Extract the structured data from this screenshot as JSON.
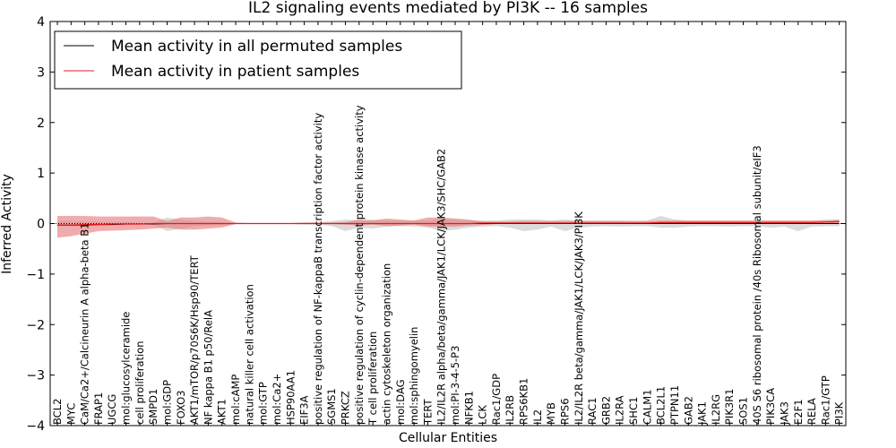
{
  "chart_data": {
    "type": "line",
    "title": "IL2 signaling events mediated by PI3K -- 16 samples",
    "xlabel": "Cellular Entities",
    "ylabel": "Inferred Activity",
    "ylim": [
      -4,
      4
    ],
    "yticks": [
      "−4",
      "−3",
      "−2",
      "−1",
      "0",
      "1",
      "2",
      "3",
      "4"
    ],
    "legend_position": "top-left",
    "grid": false,
    "colors": {
      "permuted": "#000000",
      "patient": "#e8191c",
      "patient_band": "#e88080",
      "permuted_band": "#c8c8c8"
    },
    "categories": [
      "BCL2",
      "MYC",
      "CaM/Ca2+/Calcineurin A alpha-beta B1",
      "FRAP1",
      "UGCG",
      "mol:glucosylceramide",
      "cell proliferation",
      "SMPD1",
      "mol:GDP",
      "FOXO3",
      "AKT1/mTOR/p70S6K/Hsp90/TERT",
      "NF kappa B1 p50/RelA",
      "AKT1",
      "mol:cAMP",
      "natural killer cell activation",
      "mol:GTP",
      "mol:Ca2+",
      "HSP90AA1",
      "EIF3A",
      "positive regulation of NF-kappaB transcription factor activity",
      "SGMS1",
      "PRKCZ",
      "positive regulation of cyclin-dependent protein kinase activity",
      "T cell proliferation",
      "actin cytoskeleton organization",
      "mol:DAG",
      "mol:sphingomyelin",
      "TERT",
      "IL2/IL2R alpha/beta/gamma/JAK1/LCK/JAK3/SHC/GAB2",
      "mol:PI-3-4-5-P3",
      "NFKB1",
      "LCK",
      "Rac1/GDP",
      "IL2RB",
      "RPS6KB1",
      "IL2",
      "MYB",
      "RPS6",
      "IL2/IL2R beta/gamma/JAK1/LCK/JAK3/PI3K",
      "RAC1",
      "GRB2",
      "IL2RA",
      "SHC1",
      "CALM1",
      "BCL2L1",
      "PTPN11",
      "GAB2",
      "JAK1",
      "IL2RG",
      "PIK3R1",
      "SOS1",
      "40S S6 ribosomal protein /40s Ribosomal subunit/eIF3",
      "PIK3CA",
      "JAK3",
      "E2F1",
      "RELA",
      "Rac1/GTP",
      "PI3K"
    ],
    "series": [
      {
        "name": "Mean activity in all permuted samples",
        "values": [
          -0.03,
          -0.03,
          -0.03,
          -0.02,
          -0.02,
          -0.01,
          -0.01,
          -0.01,
          0.0,
          0.0,
          0.0,
          0.0,
          0.0,
          0.0,
          0.0,
          0.0,
          0.0,
          0.0,
          0.0,
          0.0,
          0.0,
          0.0,
          0.0,
          0.0,
          0.0,
          0.0,
          0.0,
          0.0,
          0.0,
          0.0,
          0.0,
          0.0,
          0.0,
          0.0,
          0.0,
          0.0,
          0.0,
          0.0,
          0.0,
          0.0,
          0.0,
          0.0,
          0.0,
          0.0,
          0.0,
          0.0,
          0.0,
          0.0,
          0.0,
          0.0,
          0.0,
          0.0,
          0.0,
          0.0,
          0.0,
          0.0,
          0.0,
          0.0
        ],
        "band_low": [
          -0.05,
          -0.05,
          -0.04,
          -0.04,
          -0.03,
          -0.03,
          -0.02,
          -0.02,
          -0.15,
          -0.1,
          -0.05,
          -0.04,
          -0.03,
          -0.01,
          -0.01,
          -0.01,
          -0.01,
          -0.01,
          -0.02,
          -0.02,
          -0.05,
          -0.15,
          -0.08,
          -0.1,
          -0.06,
          -0.05,
          -0.06,
          -0.08,
          -0.15,
          -0.12,
          -0.08,
          -0.06,
          -0.05,
          -0.08,
          -0.15,
          -0.12,
          -0.06,
          -0.15,
          -0.08,
          -0.06,
          -0.05,
          -0.06,
          -0.05,
          -0.05,
          -0.08,
          -0.08,
          -0.06,
          -0.05,
          -0.05,
          -0.06,
          -0.05,
          -0.05,
          -0.08,
          -0.06,
          -0.15,
          -0.06,
          -0.05,
          -0.05
        ],
        "band_high": [
          0.05,
          0.05,
          0.04,
          0.04,
          0.03,
          0.03,
          0.02,
          0.02,
          0.12,
          0.08,
          0.05,
          0.04,
          0.03,
          0.01,
          0.01,
          0.01,
          0.01,
          0.01,
          0.02,
          0.02,
          0.05,
          0.08,
          0.06,
          0.08,
          0.06,
          0.05,
          0.06,
          0.06,
          0.1,
          0.08,
          0.06,
          0.06,
          0.06,
          0.08,
          0.08,
          0.08,
          0.06,
          0.08,
          0.06,
          0.06,
          0.06,
          0.06,
          0.05,
          0.06,
          0.15,
          0.08,
          0.06,
          0.06,
          0.06,
          0.06,
          0.06,
          0.06,
          0.06,
          0.06,
          0.06,
          0.06,
          0.06,
          0.05
        ]
      },
      {
        "name": "Mean activity in patient samples",
        "values": [
          -0.03,
          -0.03,
          -0.02,
          -0.02,
          -0.01,
          -0.01,
          -0.01,
          0.0,
          0.0,
          0.0,
          0.0,
          0.0,
          0.0,
          0.0,
          0.0,
          0.0,
          0.0,
          0.0,
          0.0,
          0.0,
          0.0,
          0.0,
          0.0,
          0.0,
          0.0,
          0.0,
          0.0,
          0.0,
          0.0,
          0.0,
          0.0,
          0.01,
          0.01,
          0.01,
          0.01,
          0.01,
          0.01,
          0.01,
          0.01,
          0.01,
          0.01,
          0.01,
          0.01,
          0.01,
          0.02,
          0.02,
          0.02,
          0.02,
          0.02,
          0.02,
          0.02,
          0.02,
          0.02,
          0.02,
          0.02,
          0.02,
          0.03,
          0.04
        ],
        "band_low": [
          -0.28,
          -0.25,
          -0.2,
          -0.15,
          -0.14,
          -0.13,
          -0.12,
          -0.1,
          -0.08,
          -0.12,
          -0.12,
          -0.1,
          -0.08,
          -0.01,
          -0.01,
          -0.01,
          -0.01,
          -0.01,
          -0.01,
          -0.01,
          -0.01,
          -0.02,
          -0.04,
          -0.02,
          -0.05,
          -0.04,
          -0.02,
          -0.06,
          -0.06,
          -0.06,
          -0.04,
          -0.03,
          -0.01,
          0.0,
          0.0,
          0.0,
          0.0,
          0.0,
          0.0,
          0.0,
          0.0,
          0.0,
          0.0,
          0.0,
          0.0,
          0.0,
          0.0,
          0.0,
          0.0,
          0.0,
          0.0,
          0.0,
          0.0,
          0.0,
          0.0,
          0.0,
          0.0,
          0.01
        ],
        "band_high": [
          0.15,
          0.15,
          0.15,
          0.14,
          0.14,
          0.14,
          0.14,
          0.14,
          0.05,
          0.12,
          0.12,
          0.14,
          0.12,
          0.02,
          0.01,
          0.01,
          0.01,
          0.01,
          0.02,
          0.02,
          0.02,
          0.03,
          0.08,
          0.06,
          0.1,
          0.08,
          0.06,
          0.12,
          0.12,
          0.1,
          0.08,
          0.04,
          0.04,
          0.04,
          0.05,
          0.05,
          0.05,
          0.05,
          0.05,
          0.05,
          0.05,
          0.05,
          0.05,
          0.05,
          0.06,
          0.06,
          0.06,
          0.06,
          0.06,
          0.06,
          0.06,
          0.06,
          0.06,
          0.06,
          0.06,
          0.06,
          0.07,
          0.08
        ]
      }
    ]
  }
}
